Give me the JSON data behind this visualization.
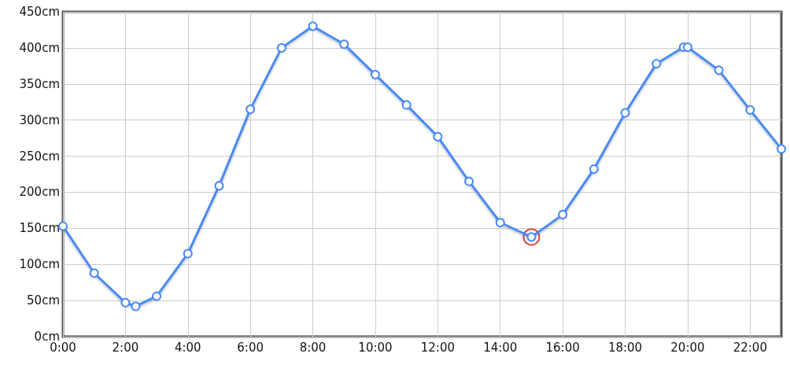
{
  "chart_data": {
    "type": "line",
    "x": [
      0,
      1,
      2,
      2.33,
      3,
      4,
      5,
      6,
      7,
      8,
      9,
      10,
      11,
      12,
      13,
      14,
      15,
      16,
      17,
      18,
      19,
      19.87,
      20,
      21,
      22,
      23
    ],
    "series": [
      {
        "color": "#4a8af4",
        "values": [
          153,
          88,
          47,
          42,
          56,
          115,
          209,
          315,
          400,
          430,
          405,
          363,
          321,
          277,
          215,
          158,
          138,
          169,
          232,
          310,
          378,
          401,
          401,
          369,
          314,
          260
        ]
      },
      {
        "type": "scatter",
        "color": "#cc1111",
        "x": [
          15
        ],
        "values": [
          138
        ]
      }
    ],
    "xlim": [
      0,
      23
    ],
    "xticks": [
      {
        "value": 0,
        "label": "0:00"
      },
      {
        "value": 2,
        "label": "2:00"
      },
      {
        "value": 4,
        "label": "4:00"
      },
      {
        "value": 6,
        "label": "6:00"
      },
      {
        "value": 8,
        "label": "8:00"
      },
      {
        "value": 10,
        "label": "10:00"
      },
      {
        "value": 12,
        "label": "12:00"
      },
      {
        "value": 14,
        "label": "14:00"
      },
      {
        "value": 16,
        "label": "16:00"
      },
      {
        "value": 18,
        "label": "18:00"
      },
      {
        "value": 20,
        "label": "20:00"
      },
      {
        "value": 22,
        "label": "22:00"
      }
    ],
    "ylim": [
      0,
      450
    ],
    "yticks": [
      {
        "value": 0,
        "label": "0cm"
      },
      {
        "value": 50,
        "label": "50cm"
      },
      {
        "value": 100,
        "label": "100cm"
      },
      {
        "value": 150,
        "label": "150cm"
      },
      {
        "value": 200,
        "label": "200cm"
      },
      {
        "value": 250,
        "label": "250cm"
      },
      {
        "value": 300,
        "label": "300cm"
      },
      {
        "value": 350,
        "label": "350cm"
      },
      {
        "value": 400,
        "label": "400cm"
      },
      {
        "value": 450,
        "label": "450cm"
      }
    ],
    "grid": true,
    "marker": "circle",
    "line_style": "solid"
  }
}
